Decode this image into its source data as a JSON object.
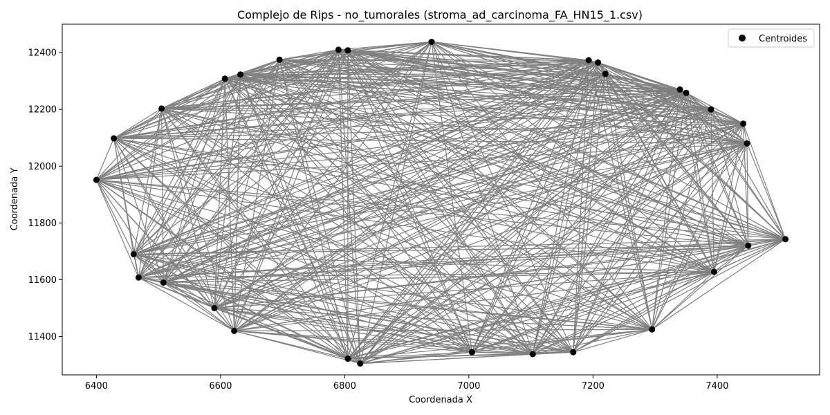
{
  "chart_data": {
    "type": "scatter",
    "title": "Complejo de Rips - no_tumorales (stroma_ad_carcinoma_FA_HN15_1.csv)",
    "xlabel": "Coordenada X",
    "ylabel": "Coordenada Y",
    "xlim": [
      6345,
      7565
    ],
    "ylim": [
      11265,
      12500
    ],
    "xticks": [
      6400,
      6600,
      6800,
      7000,
      7200,
      7400
    ],
    "yticks": [
      11400,
      11600,
      11800,
      12000,
      12200,
      12400
    ],
    "grid": false,
    "legend_position": "top-right",
    "series": [
      {
        "name": "Centroides",
        "color": "#000000",
        "marker": "circle",
        "points": [
          [
            6400,
            11952
          ],
          [
            6428,
            12098
          ],
          [
            6460,
            11690
          ],
          [
            6468,
            11608
          ],
          [
            6505,
            12203
          ],
          [
            6508,
            11590
          ],
          [
            6590,
            11500
          ],
          [
            6607,
            12308
          ],
          [
            6622,
            11420
          ],
          [
            6632,
            12323
          ],
          [
            6695,
            12375
          ],
          [
            6790,
            12410
          ],
          [
            6805,
            12408
          ],
          [
            6805,
            11322
          ],
          [
            6825,
            11305
          ],
          [
            6940,
            12438
          ],
          [
            7005,
            11345
          ],
          [
            7103,
            11338
          ],
          [
            7168,
            11345
          ],
          [
            7193,
            12373
          ],
          [
            7208,
            12365
          ],
          [
            7220,
            12325
          ],
          [
            7295,
            11425
          ],
          [
            7340,
            12270
          ],
          [
            7350,
            12258
          ],
          [
            7390,
            12200
          ],
          [
            7395,
            11628
          ],
          [
            7442,
            12150
          ],
          [
            7448,
            12080
          ],
          [
            7510,
            11743
          ],
          [
            7450,
            11720
          ]
        ]
      }
    ],
    "edges": {
      "color": "#808080",
      "description": "edges between centroid pairs of the Rips complex"
    }
  }
}
